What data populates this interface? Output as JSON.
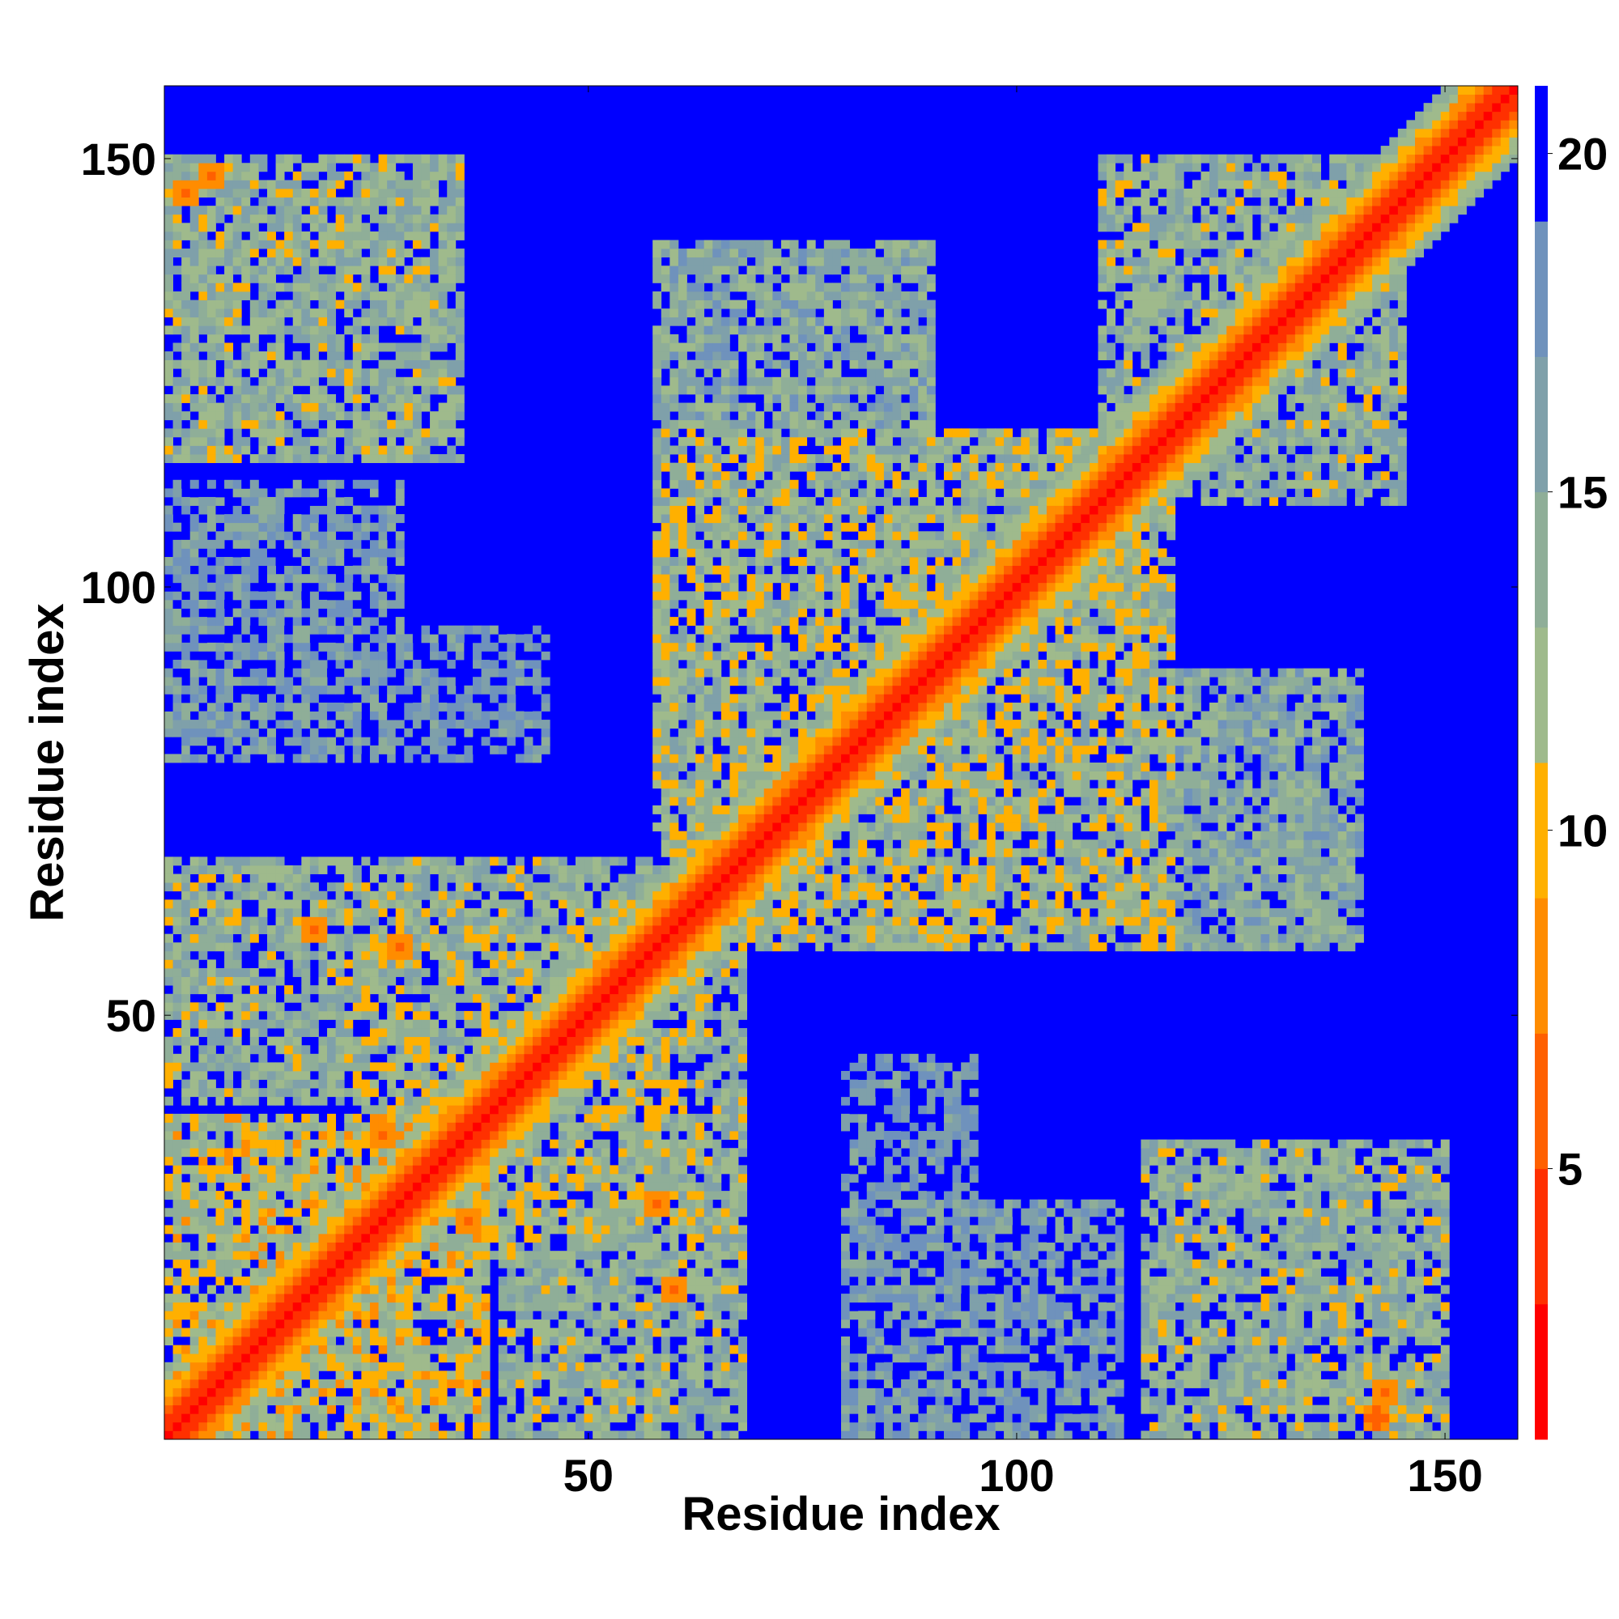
{
  "chart_data": {
    "type": "heatmap",
    "title": "",
    "xlabel": "Residue index",
    "ylabel": "Residue index",
    "n_residues": 158,
    "xlim": [
      1,
      158
    ],
    "ylim": [
      1,
      158
    ],
    "x_ticks": [
      50,
      100,
      150
    ],
    "y_ticks": [
      50,
      100,
      150
    ],
    "colorbar": {
      "ticks": [
        5,
        10,
        15,
        20
      ],
      "range": [
        1,
        21
      ],
      "colors": [
        "#ff0000",
        "#ff3000",
        "#ff6000",
        "#ff8c00",
        "#ffb000",
        "#9fba8c",
        "#8fae98",
        "#7fa0aa",
        "#6f92bc",
        "#0000ff"
      ]
    },
    "contact_blocks": [
      {
        "x": [
          1,
          38
        ],
        "y": [
          1,
          38
        ],
        "value": 11
      },
      {
        "x": [
          22,
          63
        ],
        "y": [
          22,
          63
        ],
        "value": 12
      },
      {
        "x": [
          1,
          63
        ],
        "y": [
          40,
          68
        ],
        "value": 13
      },
      {
        "x": [
          40,
          68
        ],
        "y": [
          1,
          63
        ],
        "value": 13
      },
      {
        "x": [
          58,
          118
        ],
        "y": [
          58,
          118
        ],
        "value": 12
      },
      {
        "x": [
          58,
          90
        ],
        "y": [
          100,
          140
        ],
        "value": 14
      },
      {
        "x": [
          100,
          140
        ],
        "y": [
          58,
          90
        ],
        "value": 14
      },
      {
        "x": [
          110,
          145
        ],
        "y": [
          110,
          150
        ],
        "value": 13
      },
      {
        "x": [
          1,
          35
        ],
        "y": [
          115,
          150
        ],
        "value": 13
      },
      {
        "x": [
          115,
          150
        ],
        "y": [
          1,
          35
        ],
        "value": 13
      },
      {
        "x": [
          1,
          28
        ],
        "y": [
          80,
          112
        ],
        "value": 16
      },
      {
        "x": [
          80,
          112
        ],
        "y": [
          1,
          28
        ],
        "value": 16
      },
      {
        "x": [
          28,
          45
        ],
        "y": [
          80,
          95
        ],
        "value": 17
      },
      {
        "x": [
          80,
          95
        ],
        "y": [
          28,
          45
        ],
        "value": 17
      }
    ],
    "hot_spots": [
      {
        "x": 3,
        "y": 146,
        "value": 6
      },
      {
        "x": 6,
        "y": 148,
        "value": 6
      },
      {
        "x": 142,
        "y": 3,
        "value": 5
      },
      {
        "x": 143,
        "y": 6,
        "value": 6
      },
      {
        "x": 26,
        "y": 36,
        "value": 6
      },
      {
        "x": 36,
        "y": 26,
        "value": 6
      },
      {
        "x": 28,
        "y": 58,
        "value": 6
      },
      {
        "x": 58,
        "y": 28,
        "value": 6
      },
      {
        "x": 60,
        "y": 18,
        "value": 6
      },
      {
        "x": 18,
        "y": 60,
        "value": 6
      }
    ]
  }
}
